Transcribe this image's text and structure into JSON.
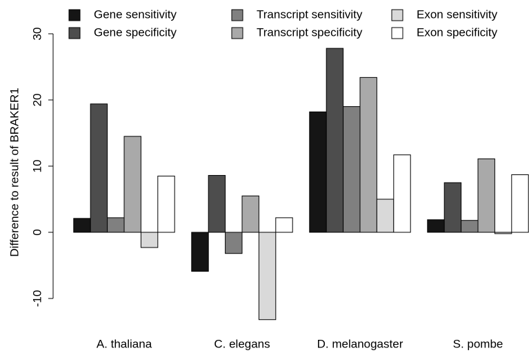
{
  "chart_data": {
    "type": "bar",
    "y_label": "Difference to result of BRAKER1",
    "categories": [
      "A. thaliana",
      "C. elegans",
      "D. melanogaster",
      "S. pombe"
    ],
    "series": [
      {
        "name": "Gene sensitivity",
        "color": "#151515",
        "values": [
          2.1,
          -5.9,
          18.2,
          1.9
        ]
      },
      {
        "name": "Gene specificity",
        "color": "#4d4d4d",
        "values": [
          19.4,
          8.6,
          27.8,
          7.5
        ]
      },
      {
        "name": "Transcript sensitivity",
        "color": "#808080",
        "values": [
          2.2,
          -3.2,
          19.0,
          1.8
        ]
      },
      {
        "name": "Transcript specificity",
        "color": "#a9a9a9",
        "values": [
          14.5,
          5.5,
          23.4,
          11.1
        ]
      },
      {
        "name": "Exon sensitivity",
        "color": "#d9d9d9",
        "values": [
          -2.3,
          -13.2,
          5.0,
          -0.2
        ]
      },
      {
        "name": "Exon specificity",
        "color": "#ffffff",
        "values": [
          8.5,
          2.2,
          11.7,
          8.7
        ]
      }
    ],
    "ylim": [
      -13.5,
      30
    ],
    "yticks": [
      -10,
      0,
      10,
      20,
      30
    ],
    "legend": "top"
  }
}
